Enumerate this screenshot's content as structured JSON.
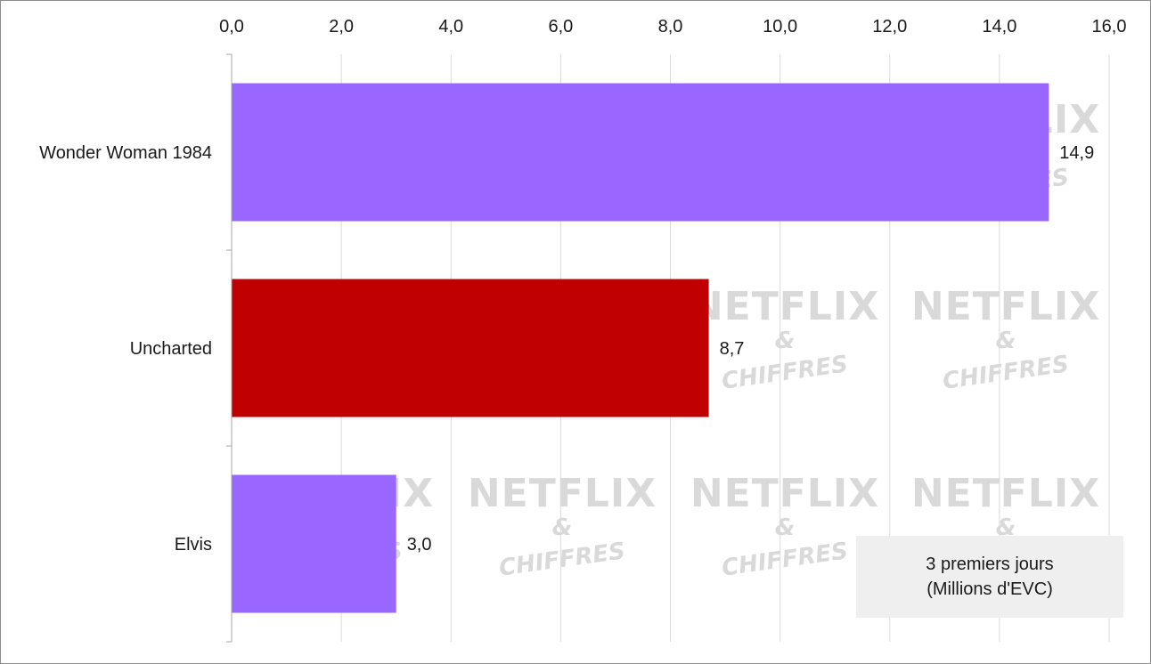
{
  "chart_data": {
    "type": "bar",
    "orientation": "horizontal",
    "categories": [
      "Wonder Woman 1984",
      "Uncharted",
      "Elvis"
    ],
    "values": [
      14.9,
      8.7,
      3.0
    ],
    "value_labels": [
      "14,9",
      "8,7",
      "3,0"
    ],
    "bar_colors": [
      "#9966ff",
      "#c00000",
      "#9966ff"
    ],
    "xlim": [
      0,
      16
    ],
    "x_ticks": [
      0,
      2,
      4,
      6,
      8,
      10,
      12,
      14,
      16
    ],
    "x_tick_labels": [
      "0,0",
      "2,0",
      "4,0",
      "6,0",
      "8,0",
      "10,0",
      "12,0",
      "14,0",
      "16,0"
    ],
    "x_axis_position": "top",
    "grid": true,
    "title": "",
    "xlabel": "",
    "ylabel": ""
  },
  "annotation": {
    "line1": "3 premiers jours",
    "line2": "(Millions d'EVC)"
  },
  "watermark": {
    "line1": "NETFLIX",
    "line2": "&",
    "line3": "CHIFFRES"
  },
  "colors": {
    "grid": "#d9d9d9",
    "axis": "#a6a6a6",
    "note_background": "#efefef"
  }
}
